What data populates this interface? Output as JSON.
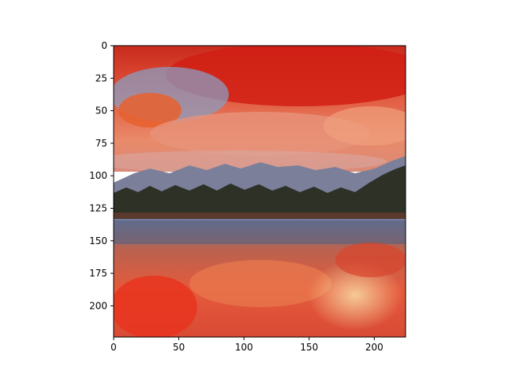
{
  "chart_data": {
    "type": "image",
    "title": "",
    "xlabel": "",
    "ylabel": "",
    "xlim": [
      0,
      224
    ],
    "ylim": [
      224,
      0
    ],
    "x_ticks": [
      0,
      50,
      100,
      150,
      200
    ],
    "y_ticks": [
      0,
      25,
      50,
      75,
      100,
      125,
      150,
      175,
      200
    ],
    "image_description_colors": {
      "sky_top": "#d6281c",
      "sky_mid": "#e97d5e",
      "clouds_blue": "#8e9fc0",
      "mountains": "#7a7f98",
      "treeline": "#2c2e24",
      "water_reflection_blue": "#7d8cab",
      "water_reflection_red": "#e84a30",
      "water_highlight": "#f2c08a"
    }
  }
}
